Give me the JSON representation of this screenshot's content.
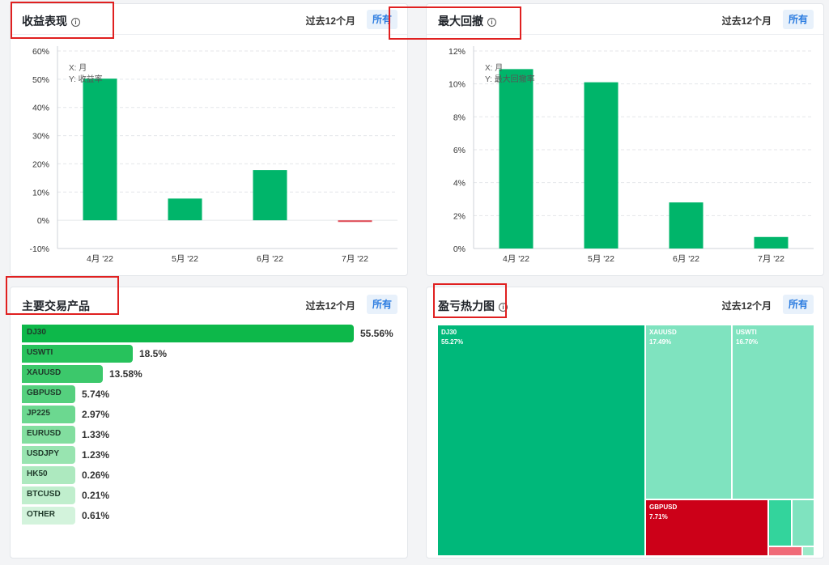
{
  "panels": {
    "returns": {
      "title": "收益表现",
      "period": "过去12个月",
      "scope": "所有"
    },
    "drawdown": {
      "title": "最大回撤",
      "period": "过去12个月",
      "scope": "所有"
    },
    "instruments": {
      "title": "主要交易产品",
      "period": "过去12个月",
      "scope": "所有"
    },
    "heatmap": {
      "title": "盈亏热力图",
      "period": "过去12个月",
      "scope": "所有"
    }
  },
  "chart_data": [
    {
      "type": "bar",
      "categories": [
        "4月 '22",
        "5月 '22",
        "6月 '22",
        "7月 '22"
      ],
      "values": [
        50.2,
        7.7,
        17.8,
        -0.6
      ],
      "ylim": [
        -10,
        60
      ],
      "yticks": [
        -10,
        0,
        10,
        20,
        30,
        40,
        50,
        60
      ],
      "ytick_labels": [
        "-10%",
        "0%",
        "10%",
        "20%",
        "30%",
        "40%",
        "50%",
        "60%"
      ],
      "xlabel": "X: 月",
      "ylabel": "Y: 收益率",
      "colors": {
        "positive": "#00b56a",
        "negative": "#e0505a"
      },
      "grid": true
    },
    {
      "type": "bar",
      "categories": [
        "4月 '22",
        "5月 '22",
        "6月 '22",
        "7月 '22"
      ],
      "values": [
        10.9,
        10.1,
        2.8,
        0.7
      ],
      "ylim": [
        0,
        12
      ],
      "yticks": [
        0,
        2,
        4,
        6,
        8,
        10,
        12
      ],
      "ytick_labels": [
        "0%",
        "2%",
        "4%",
        "6%",
        "8%",
        "10%",
        "12%"
      ],
      "xlabel": "X: 月",
      "ylabel": "Y: 最大回撤率",
      "colors": {
        "positive": "#00b56a",
        "negative": "#e0505a"
      },
      "grid": true
    }
  ],
  "instruments": [
    {
      "name": "DJ30",
      "value": 55.56,
      "label": "55.56%",
      "color": "#0db84a"
    },
    {
      "name": "USWTI",
      "value": 18.5,
      "label": "18.5%",
      "color": "#27c25c"
    },
    {
      "name": "XAUUSD",
      "value": 13.58,
      "label": "13.58%",
      "color": "#3cc86b"
    },
    {
      "name": "GBPUSD",
      "value": 5.74,
      "label": "5.74%",
      "color": "#55d07e"
    },
    {
      "name": "JP225",
      "value": 2.97,
      "label": "2.97%",
      "color": "#6cd890"
    },
    {
      "name": "EURUSD",
      "value": 1.33,
      "label": "1.33%",
      "color": "#82de9f"
    },
    {
      "name": "USDJPY",
      "value": 1.23,
      "label": "1.23%",
      "color": "#98e4b0"
    },
    {
      "name": "HK50",
      "value": 0.26,
      "label": "0.26%",
      "color": "#ade9bf"
    },
    {
      "name": "BTCUSD",
      "value": 0.21,
      "label": "0.21%",
      "color": "#c0eecd"
    },
    {
      "name": "OTHER",
      "value": 0.61,
      "label": "0.61%",
      "color": "#d3f3dc"
    }
  ],
  "heatmap_tiles": [
    {
      "name": "DJ30",
      "value": "55.27%",
      "color": "#00b87a"
    },
    {
      "name": "XAUUSD",
      "value": "17.49%",
      "color": "#7fe3bf"
    },
    {
      "name": "USWTI",
      "value": "16.70%",
      "color": "#7fe3bf"
    },
    {
      "name": "GBPUSD",
      "value": "7.71%",
      "color": "#cc0018"
    }
  ],
  "heatmap_small_colors": [
    "#33d49c",
    "#7fe3bf",
    "#f06a78",
    "#9ceac9"
  ]
}
